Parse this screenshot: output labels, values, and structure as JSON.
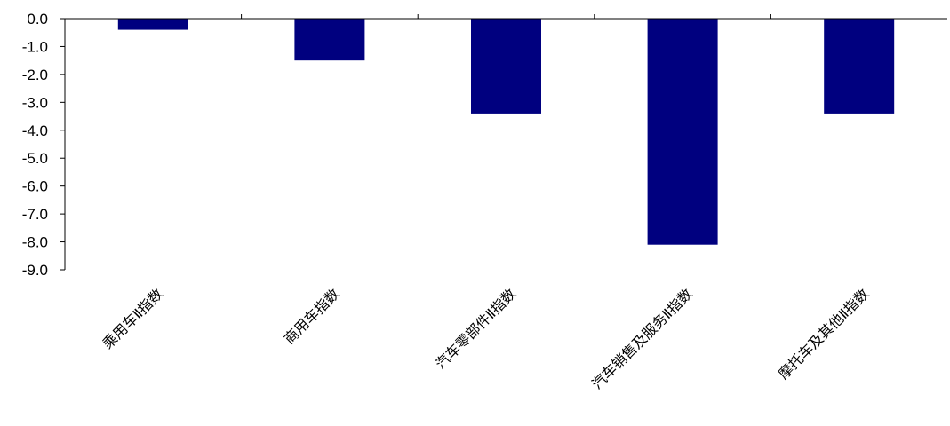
{
  "colors": {
    "bar": "#00007F",
    "axis": "#000000",
    "background": "#FFFFFF"
  },
  "chart_data": {
    "type": "bar",
    "title": "",
    "xlabel": "",
    "ylabel": "",
    "categories": [
      "乘用车Ⅱ指数",
      "商用车指数",
      "汽车零部件Ⅱ指数",
      "汽车销售及服务Ⅱ指数",
      "摩托车及其他Ⅱ指数"
    ],
    "values": [
      -0.4,
      -1.5,
      -3.4,
      -8.1,
      -3.4
    ],
    "ylim": [
      -9.0,
      0.0
    ],
    "yticks": [
      "0.0",
      "-1.0",
      "-2.0",
      "-3.0",
      "-4.0",
      "-5.0",
      "-6.0",
      "-7.0",
      "-8.0",
      "-9.0"
    ],
    "grid": false,
    "legend": "none"
  }
}
